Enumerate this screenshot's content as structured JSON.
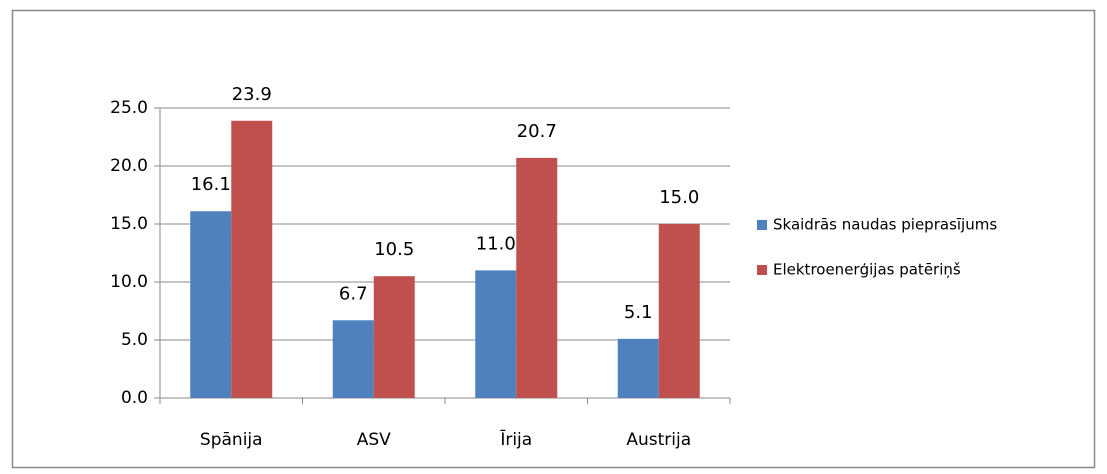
{
  "chart_data": {
    "type": "bar",
    "categories": [
      "Spānija",
      "ASV",
      "Īrija",
      "Austrija"
    ],
    "series": [
      {
        "name": "Skaidrās naudas pieprasījums",
        "color": "#4f81bd",
        "values": [
          16.1,
          6.7,
          11.0,
          5.1
        ],
        "value_labels": [
          "16.1",
          "6.7",
          "11.0",
          "5.1"
        ]
      },
      {
        "name": "Elektroenerģijas patēriņš",
        "color": "#c0504d",
        "values": [
          23.9,
          10.5,
          20.7,
          15.0
        ],
        "value_labels": [
          "23.9",
          "10.5",
          "20.7",
          "15.0"
        ]
      }
    ],
    "ylim": [
      0,
      25
    ],
    "yticks": [
      {
        "value": 0,
        "label": "0.0"
      },
      {
        "value": 5,
        "label": "5.0"
      },
      {
        "value": 10,
        "label": "10.0"
      },
      {
        "value": 15,
        "label": "15.0"
      },
      {
        "value": 20,
        "label": "20.0"
      },
      {
        "value": 25,
        "label": "25.0"
      }
    ],
    "grid": true,
    "legend": "right"
  }
}
